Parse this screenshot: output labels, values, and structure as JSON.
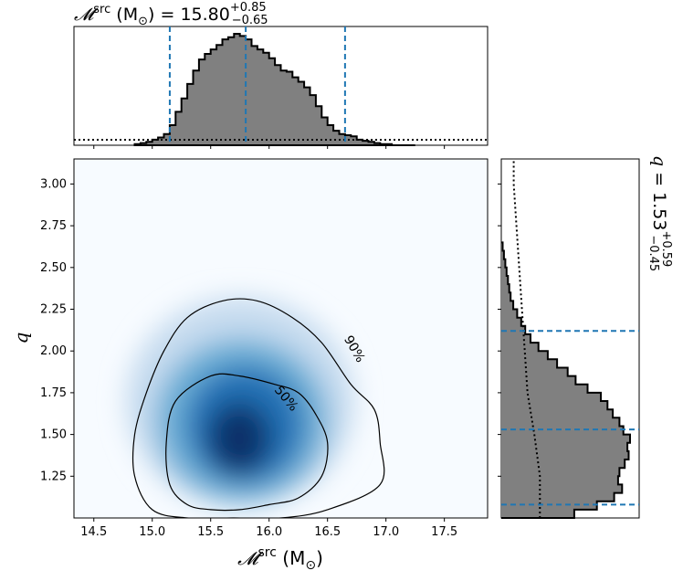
{
  "chart_data": [
    {
      "type": "histogram",
      "panel": "top-marginal",
      "title": "𝓜src (M⊙) = 15.80+0.85−0.65",
      "title_parts": {
        "symbol": "𝓜",
        "sup": "src",
        "unit": " (M",
        "unit_sub": "⊙",
        "unit_close": ") = 15.80",
        "plus": "+0.85",
        "minus": "−0.65"
      },
      "median": 15.8,
      "lower": 15.15,
      "upper": 16.65,
      "bins_x": [
        14.85,
        14.9,
        14.95,
        15.0,
        15.05,
        15.1,
        15.15,
        15.2,
        15.25,
        15.3,
        15.35,
        15.4,
        15.45,
        15.5,
        15.55,
        15.6,
        15.65,
        15.7,
        15.75,
        15.8,
        15.85,
        15.9,
        15.95,
        16.0,
        16.05,
        16.1,
        16.15,
        16.2,
        16.25,
        16.3,
        16.35,
        16.4,
        16.45,
        16.5,
        16.55,
        16.6,
        16.65,
        16.7,
        16.75,
        16.8,
        16.85,
        16.9,
        16.95,
        17.0,
        17.05,
        17.1,
        17.15,
        17.2,
        17.25
      ],
      "counts": [
        0.01,
        0.02,
        0.03,
        0.05,
        0.07,
        0.1,
        0.18,
        0.3,
        0.42,
        0.55,
        0.67,
        0.77,
        0.82,
        0.86,
        0.9,
        0.95,
        0.97,
        1.0,
        0.98,
        0.95,
        0.89,
        0.86,
        0.83,
        0.78,
        0.72,
        0.67,
        0.66,
        0.61,
        0.57,
        0.52,
        0.45,
        0.35,
        0.25,
        0.18,
        0.13,
        0.1,
        0.09,
        0.08,
        0.05,
        0.04,
        0.03,
        0.02,
        0.01,
        0.01,
        0.0,
        0.0,
        0.0,
        0.0
      ],
      "prior": "dotted flat line near zero"
    },
    {
      "type": "heatmap",
      "panel": "joint",
      "xlabel": "𝓜src (M⊙)",
      "xlabel_parts": {
        "symbol": "𝓜",
        "sup": "src",
        "unit": " (M",
        "unit_sub": "⊙",
        "unit_close": ")"
      },
      "ylabel": "q",
      "xlim": [
        14.33,
        17.87
      ],
      "ylim": [
        1.0,
        3.15
      ],
      "xticks": [
        "14.5",
        "15.0",
        "15.5",
        "16.0",
        "16.5",
        "17.0",
        "17.5"
      ],
      "xtick_values": [
        14.5,
        15.0,
        15.5,
        16.0,
        16.5,
        17.0,
        17.5
      ],
      "yticks": [
        "1.25",
        "1.50",
        "1.75",
        "2.00",
        "2.25",
        "2.50",
        "2.75",
        "3.00"
      ],
      "ytick_values": [
        1.25,
        1.5,
        1.75,
        2.0,
        2.25,
        2.5,
        2.75,
        3.0
      ],
      "density_peak": {
        "x": 15.75,
        "y": 1.45
      },
      "contours": [
        {
          "label": "50%",
          "points": [
            [
              15.2,
              1.7
            ],
            [
              15.5,
              1.85
            ],
            [
              15.75,
              1.85
            ],
            [
              16.05,
              1.8
            ],
            [
              16.25,
              1.75
            ],
            [
              16.4,
              1.62
            ],
            [
              16.5,
              1.45
            ],
            [
              16.45,
              1.25
            ],
            [
              16.25,
              1.12
            ],
            [
              16.0,
              1.08
            ],
            [
              15.75,
              1.05
            ],
            [
              15.5,
              1.05
            ],
            [
              15.3,
              1.08
            ],
            [
              15.15,
              1.2
            ],
            [
              15.12,
              1.45
            ]
          ]
        },
        {
          "label": "90%",
          "points": [
            [
              14.95,
              1.75
            ],
            [
              15.1,
              2.0
            ],
            [
              15.3,
              2.2
            ],
            [
              15.6,
              2.3
            ],
            [
              15.9,
              2.3
            ],
            [
              16.2,
              2.2
            ],
            [
              16.45,
              2.05
            ],
            [
              16.7,
              1.8
            ],
            [
              16.9,
              1.65
            ],
            [
              16.95,
              1.45
            ],
            [
              16.95,
              1.2
            ],
            [
              16.5,
              1.05
            ],
            [
              16.1,
              1.0
            ],
            [
              15.7,
              1.0
            ],
            [
              15.3,
              1.0
            ],
            [
              15.0,
              1.05
            ],
            [
              14.85,
              1.25
            ],
            [
              14.85,
              1.5
            ]
          ]
        }
      ]
    },
    {
      "type": "histogram",
      "panel": "right-marginal",
      "title": "q = 1.53+0.59−0.45",
      "title_parts": {
        "symbol": "q",
        "value": " = 1.53",
        "plus": "+0.59",
        "minus": "−0.45"
      },
      "median": 1.53,
      "lower": 1.08,
      "upper": 2.12,
      "bins_y": [
        1.0,
        1.05,
        1.1,
        1.15,
        1.2,
        1.25,
        1.3,
        1.35,
        1.4,
        1.45,
        1.5,
        1.55,
        1.6,
        1.65,
        1.7,
        1.75,
        1.8,
        1.85,
        1.9,
        1.95,
        2.0,
        2.05,
        2.1,
        2.15,
        2.2,
        2.25,
        2.3,
        2.35,
        2.4,
        2.45,
        2.5,
        2.55,
        2.6,
        2.65
      ],
      "counts": [
        0.55,
        0.72,
        0.85,
        0.91,
        0.88,
        0.89,
        0.93,
        0.96,
        0.95,
        0.97,
        0.92,
        0.89,
        0.84,
        0.8,
        0.75,
        0.65,
        0.56,
        0.5,
        0.42,
        0.35,
        0.28,
        0.22,
        0.18,
        0.15,
        0.12,
        0.09,
        0.07,
        0.06,
        0.05,
        0.04,
        0.03,
        0.02,
        0.01,
        0.0
      ],
      "prior": "dotted declining line"
    }
  ]
}
